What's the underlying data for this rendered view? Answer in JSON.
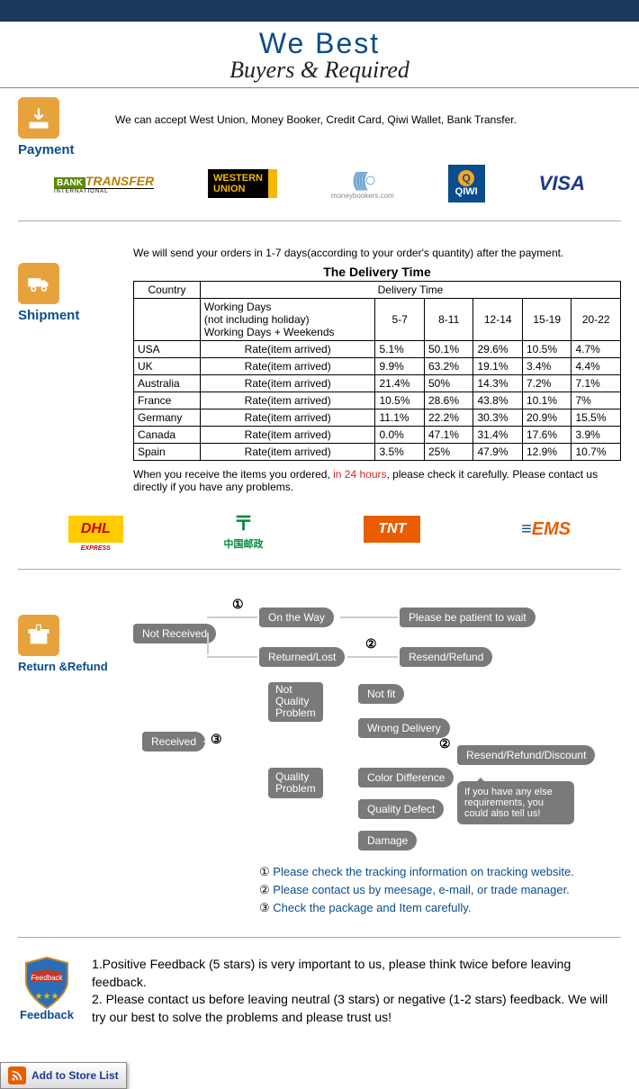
{
  "header": {
    "title": "We   Best",
    "subtitle": "Buyers & Required"
  },
  "payment": {
    "label": "Payment",
    "text": "We can accept West Union, Money Booker, Credit Card, Qiwi Wallet, Bank Transfer.",
    "logos": {
      "bank": "BANK",
      "transfer": "TRANSFER",
      "intl": "INTERNATIONAL",
      "wu1": "WESTERN",
      "wu2": "UNION",
      "mb": "moneybookers.com",
      "qiwi": "QIWI",
      "visa": "VISA"
    }
  },
  "shipment": {
    "label": "Shipment",
    "intro": "We will send your orders in 1-7 days(according to your order's quantity) after the payment.",
    "table": {
      "title": "The Delivery Time",
      "h_country": "Country",
      "h_delivery": "Delivery Time",
      "wd1": "Working Days",
      "wd2": "(not including holiday)",
      "wd3": "Working Days + Weekends",
      "periods": [
        "5-7",
        "8-11",
        "12-14",
        "15-19",
        "20-22"
      ],
      "rate_label": "Rate(item arrived)",
      "rows": [
        {
          "c": "USA",
          "v": [
            "5.1%",
            "50.1%",
            "29.6%",
            "10.5%",
            "4.7%"
          ]
        },
        {
          "c": "UK",
          "v": [
            "9.9%",
            "63.2%",
            "19.1%",
            "3.4%",
            "4.4%"
          ]
        },
        {
          "c": "Australia",
          "v": [
            "21.4%",
            "50%",
            "14.3%",
            "7.2%",
            "7.1%"
          ]
        },
        {
          "c": "France",
          "v": [
            "10.5%",
            "28.6%",
            "43.8%",
            "10.1%",
            "7%"
          ]
        },
        {
          "c": "Germany",
          "v": [
            "11.1%",
            "22.2%",
            "30.3%",
            "20.9%",
            "15.5%"
          ]
        },
        {
          "c": "Canada",
          "v": [
            "0.0%",
            "47.1%",
            "31.4%",
            "17.6%",
            "3.9%"
          ]
        },
        {
          "c": "Spain",
          "v": [
            "3.5%",
            "25%",
            "47.9%",
            "12.9%",
            "10.7%"
          ]
        }
      ]
    },
    "note_a": "When you receive the items you ordered, ",
    "note_red": "in 24 hours",
    "note_b": ", please check it carefully. Please contact us directly if you have any problems.",
    "carriers": {
      "dhl": "DHL",
      "cp": "中国邮政",
      "tnt": "TNT",
      "ems": "EMS"
    }
  },
  "return": {
    "label": "Return &Refund",
    "nodes": {
      "not_received": "Not Received",
      "on_way": "On the Way",
      "patient": "Please be patient to wait",
      "returned": "Returned/Lost",
      "resend": "Resend/Refund",
      "received": "Received",
      "nqp1": "Not",
      "nqp2": "Quality",
      "nqp3": "Problem",
      "not_fit": "Not fit",
      "wrong": "Wrong Delivery",
      "qp1": "Quality",
      "qp2": "Problem",
      "color": "Color Difference",
      "defect": "Quality Defect",
      "damage": "Damage",
      "rrd": "Resend/Refund/Discount",
      "speech": "If you have any else requirements, you could also tell us!"
    },
    "n1": "①",
    "n2": "②",
    "n3": "③",
    "notes": [
      {
        "n": "①",
        "t": "Please check the tracking information on tracking website."
      },
      {
        "n": "②",
        "t": "Please contact us by meesage, e-mail, or trade manager."
      },
      {
        "n": "③",
        "t": "Check the package and Item carefully."
      }
    ]
  },
  "feedback": {
    "label": "Feedback",
    "badge": "Feedback",
    "line1": "1.Positive Feedback (5 stars) is very important to us, please think twice before leaving feedback.",
    "line2": "2. Please contact us before leaving neutral (3 stars) or negative (1-2 stars) feedback. We will try our best to solve the problems and please trust us!"
  },
  "footer": {
    "addstore": "Add to Store List"
  }
}
